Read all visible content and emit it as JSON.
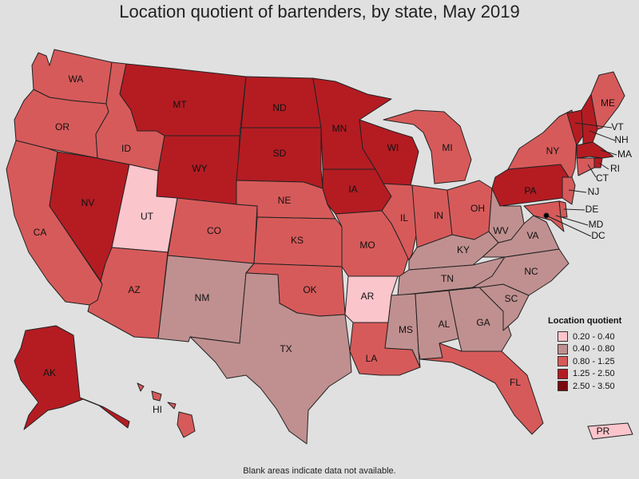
{
  "title": "Location quotient of bartenders, by state, May 2019",
  "footnote": "Blank areas indicate data not available.",
  "legend": {
    "title": "Location quotient",
    "bins": [
      {
        "label": "0.20 - 0.40",
        "color": "#fbc5cc"
      },
      {
        "label": "0.40 - 0.80",
        "color": "#c09090"
      },
      {
        "label": "0.80 - 1.25",
        "color": "#d75a5a"
      },
      {
        "label": "1.25 - 2.50",
        "color": "#b41c22"
      },
      {
        "label": "2.50 - 3.50",
        "color": "#7a0a0e"
      }
    ]
  },
  "chart_data": {
    "type": "choropleth",
    "legend_placement": "bottom-right",
    "states": [
      {
        "abbr": "WA",
        "bin": 2
      },
      {
        "abbr": "OR",
        "bin": 2
      },
      {
        "abbr": "CA",
        "bin": 2
      },
      {
        "abbr": "NV",
        "bin": 3
      },
      {
        "abbr": "ID",
        "bin": 2
      },
      {
        "abbr": "MT",
        "bin": 3
      },
      {
        "abbr": "WY",
        "bin": 3
      },
      {
        "abbr": "UT",
        "bin": 0
      },
      {
        "abbr": "AZ",
        "bin": 2
      },
      {
        "abbr": "CO",
        "bin": 2
      },
      {
        "abbr": "NM",
        "bin": 1
      },
      {
        "abbr": "ND",
        "bin": 3
      },
      {
        "abbr": "SD",
        "bin": 3
      },
      {
        "abbr": "NE",
        "bin": 2
      },
      {
        "abbr": "KS",
        "bin": 2
      },
      {
        "abbr": "OK",
        "bin": 2
      },
      {
        "abbr": "TX",
        "bin": 1
      },
      {
        "abbr": "MN",
        "bin": 3
      },
      {
        "abbr": "IA",
        "bin": 3
      },
      {
        "abbr": "MO",
        "bin": 2
      },
      {
        "abbr": "AR",
        "bin": 0
      },
      {
        "abbr": "LA",
        "bin": 2
      },
      {
        "abbr": "WI",
        "bin": 3
      },
      {
        "abbr": "IL",
        "bin": 2
      },
      {
        "abbr": "MI",
        "bin": 2
      },
      {
        "abbr": "IN",
        "bin": 2
      },
      {
        "abbr": "OH",
        "bin": 2
      },
      {
        "abbr": "KY",
        "bin": 1
      },
      {
        "abbr": "TN",
        "bin": 1
      },
      {
        "abbr": "MS",
        "bin": 1
      },
      {
        "abbr": "AL",
        "bin": 1
      },
      {
        "abbr": "GA",
        "bin": 1
      },
      {
        "abbr": "FL",
        "bin": 2
      },
      {
        "abbr": "SC",
        "bin": 1
      },
      {
        "abbr": "NC",
        "bin": 1
      },
      {
        "abbr": "VA",
        "bin": 1
      },
      {
        "abbr": "WV",
        "bin": 1
      },
      {
        "abbr": "PA",
        "bin": 3
      },
      {
        "abbr": "NY",
        "bin": 2
      },
      {
        "abbr": "VT",
        "bin": 3
      },
      {
        "abbr": "NH",
        "bin": 3
      },
      {
        "abbr": "ME",
        "bin": 2
      },
      {
        "abbr": "MA",
        "bin": 3
      },
      {
        "abbr": "RI",
        "bin": 3
      },
      {
        "abbr": "CT",
        "bin": 2
      },
      {
        "abbr": "NJ",
        "bin": 2
      },
      {
        "abbr": "DE",
        "bin": 2
      },
      {
        "abbr": "MD",
        "bin": 2
      },
      {
        "abbr": "DC",
        "bin": 4
      },
      {
        "abbr": "AK",
        "bin": 3
      },
      {
        "abbr": "HI",
        "bin": 2
      },
      {
        "abbr": "PR",
        "bin": 0
      }
    ]
  }
}
